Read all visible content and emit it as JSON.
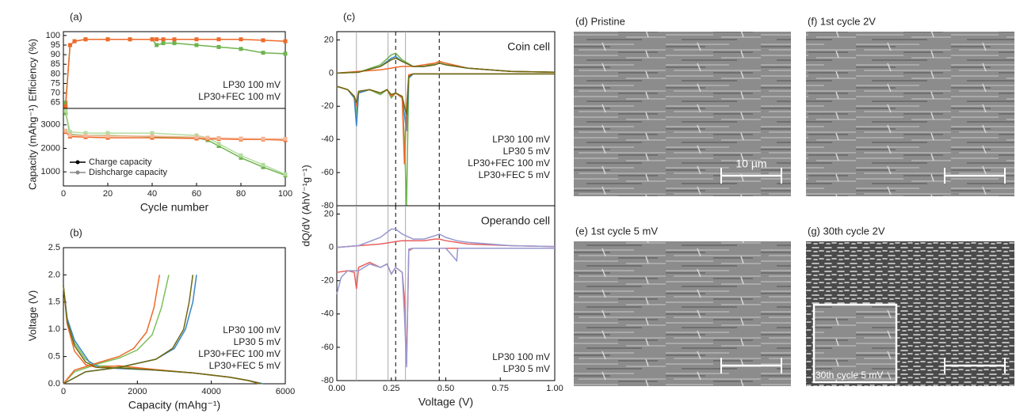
{
  "chart_data": [
    {
      "type": "line",
      "panel": "(a)",
      "ylabel": "Efficiency (%)",
      "xlim": [
        0,
        100
      ],
      "ylim": [
        62,
        102
      ],
      "yticks": [
        65,
        70,
        75,
        80,
        85,
        90,
        95,
        100
      ],
      "markers": true,
      "legend": "lower right",
      "series": [
        {
          "name": "LP30 100 mV",
          "color": "#6fb34f",
          "x": [
            1,
            3,
            5,
            10,
            20,
            30,
            40,
            42,
            45,
            50,
            60,
            70,
            80,
            90,
            100
          ],
          "values": [
            65,
            95,
            97,
            98,
            98,
            98,
            98,
            95,
            96,
            96,
            95,
            94,
            93,
            91,
            90.5
          ]
        },
        {
          "name": "LP30+FEC 100 mV",
          "color": "#ee6a2a",
          "x": [
            1,
            3,
            5,
            10,
            20,
            30,
            40,
            42,
            45,
            50,
            60,
            70,
            80,
            90,
            100
          ],
          "values": [
            63,
            95,
            97,
            98,
            98,
            98,
            98,
            98,
            98,
            98,
            98,
            98,
            98,
            97.5,
            97
          ]
        }
      ]
    },
    {
      "type": "line",
      "ylabel": "Capacity (mAhg⁻¹)",
      "xlabel": "Cycle number",
      "xlim": [
        0,
        100
      ],
      "ylim": [
        400,
        3700
      ],
      "xticks": [
        0,
        20,
        40,
        60,
        80,
        100
      ],
      "yticks": [
        1000,
        2000,
        3000
      ],
      "markers": true,
      "legend": "lower left",
      "legend_entries": [
        {
          "label": "Charge capacity",
          "color": "#000000"
        },
        {
          "label": "Dishcharge capacity",
          "color": "#888888"
        }
      ],
      "series": [
        {
          "color": "#6fb34f",
          "x": [
            1,
            3,
            10,
            20,
            40,
            60,
            65,
            70,
            80,
            90,
            100
          ],
          "values": [
            3500,
            2600,
            2550,
            2550,
            2500,
            2450,
            2350,
            2100,
            1600,
            1200,
            850
          ]
        },
        {
          "color": "#b4dca0",
          "x": [
            1,
            3,
            10,
            20,
            40,
            60,
            65,
            70,
            80,
            90,
            100
          ],
          "values": [
            3600,
            2700,
            2650,
            2650,
            2650,
            2550,
            2450,
            2200,
            1700,
            1300,
            900
          ]
        },
        {
          "color": "#ee6a2a",
          "x": [
            1,
            3,
            10,
            20,
            40,
            60,
            65,
            70,
            80,
            90,
            100
          ],
          "values": [
            2700,
            2500,
            2480,
            2450,
            2450,
            2420,
            2400,
            2400,
            2380,
            2380,
            2350
          ]
        },
        {
          "color": "#f5b89a",
          "x": [
            1,
            3,
            10,
            20,
            40,
            60,
            65,
            70,
            80,
            90,
            100
          ],
          "values": [
            2750,
            2560,
            2540,
            2520,
            2520,
            2480,
            2450,
            2440,
            2420,
            2410,
            2400
          ]
        }
      ]
    },
    {
      "type": "line",
      "panel": "(b)",
      "ylabel": "Voltage (V)",
      "xlabel": "Capacity (mAhg⁻¹)",
      "xlim": [
        0,
        6000
      ],
      "ylim": [
        0,
        2.5
      ],
      "xticks": [
        0,
        2000,
        4000,
        6000
      ],
      "yticks": [
        {
          "value": 0,
          "label": "0.0"
        },
        0.5,
        {
          "value": 1,
          "label": "1.0"
        },
        1.5,
        {
          "value": 2,
          "label": "2.0"
        },
        2.5
      ],
      "legend": "lower right",
      "series": [
        {
          "name": "LP30 100 mV",
          "color": "#7cc05a",
          "x": [
            0,
            100,
            300,
            600,
            900,
            1500,
            2500,
            3500,
            4500,
            5000,
            5300,
            null,
            0,
            300,
            1000,
            1500,
            2000,
            2400,
            2650,
            2850
          ],
          "values": [
            1.8,
            1.2,
            0.75,
            0.45,
            0.33,
            0.32,
            0.25,
            0.2,
            0.12,
            0.06,
            0,
            null,
            0,
            0.22,
            0.38,
            0.47,
            0.62,
            0.9,
            1.4,
            2.0
          ]
        },
        {
          "name": "LP30 5 mV",
          "color": "#3a86c8",
          "x": [
            0,
            100,
            300,
            700,
            1000,
            1500,
            2500,
            3500,
            4500,
            5000,
            5400,
            null,
            0,
            600,
            1500,
            2500,
            3000,
            3300,
            3500,
            3600
          ],
          "values": [
            1.8,
            1.2,
            0.8,
            0.4,
            0.3,
            0.28,
            0.25,
            0.2,
            0.12,
            0.06,
            0,
            null,
            0,
            0.22,
            0.3,
            0.45,
            0.65,
            1.0,
            1.5,
            2.0
          ]
        },
        {
          "name": "LP30+FEC 100 mV",
          "color": "#ee6a2a",
          "x": [
            0,
            100,
            300,
            600,
            900,
            1500,
            2500,
            3500,
            4500,
            5000,
            5300,
            null,
            0,
            300,
            1000,
            1500,
            1900,
            2250,
            2450,
            2600
          ],
          "values": [
            1.8,
            1.1,
            0.6,
            0.35,
            0.3,
            0.33,
            0.26,
            0.2,
            0.12,
            0.06,
            0,
            null,
            0,
            0.25,
            0.4,
            0.5,
            0.65,
            0.95,
            1.4,
            2.0
          ]
        },
        {
          "name": "LP30+FEC 5 mV",
          "color": "#6e6a12",
          "x": [
            0,
            100,
            300,
            600,
            900,
            1500,
            2500,
            3500,
            4500,
            5000,
            5350,
            null,
            0,
            600,
            1500,
            2500,
            2950,
            3250,
            3400,
            3500
          ],
          "values": [
            1.8,
            1.15,
            0.7,
            0.4,
            0.3,
            0.29,
            0.25,
            0.2,
            0.12,
            0.06,
            0,
            null,
            0,
            0.22,
            0.3,
            0.45,
            0.65,
            1.0,
            1.5,
            2.0
          ]
        }
      ]
    },
    {
      "type": "line",
      "panel": "(c)",
      "ylabel": "dQ/dV (AhV⁻¹g⁻¹)",
      "annotation": "Coin cell",
      "xlim": [
        0,
        1
      ],
      "ylim": [
        -80,
        25
      ],
      "yticks": [
        -80,
        -60,
        -40,
        -20,
        0,
        20
      ],
      "legend": "lower right",
      "vlines": [
        {
          "x": 0.09,
          "style": "solid"
        },
        {
          "x": 0.235,
          "style": "solid"
        },
        {
          "x": 0.315,
          "style": "solid"
        },
        {
          "x": 0.27,
          "style": "dashed"
        },
        {
          "x": 0.47,
          "style": "dashed"
        }
      ],
      "series": [
        {
          "name": "LP30 100 mV",
          "color": "#6fb34f",
          "x": [
            0,
            0.1,
            0.2,
            0.25,
            0.27,
            0.3,
            0.35,
            0.4,
            0.45,
            0.47,
            0.5,
            0.6,
            0.8,
            1,
            null,
            1,
            0.6,
            0.5,
            0.35,
            0.33,
            0.32,
            0.31,
            0.3,
            0.27,
            0.25,
            0.23,
            0.2,
            0.15,
            0.1,
            0.09,
            0.08,
            0.05,
            0
          ],
          "values": [
            0,
            0.5,
            5,
            11,
            12,
            8,
            4,
            4,
            6,
            7,
            6,
            3,
            1,
            0.5,
            null,
            -0.5,
            -0.5,
            -0.5,
            -0.5,
            -2,
            -80,
            -40,
            -15,
            -12,
            -15,
            -10,
            -13,
            -10,
            -12,
            -25,
            -15,
            -10,
            -8
          ]
        },
        {
          "name": "LP30 5 mV",
          "color": "#3a86c8",
          "x": [
            0,
            0.1,
            0.2,
            0.25,
            0.27,
            0.3,
            0.35,
            0.4,
            0.45,
            0.47,
            0.5,
            0.6,
            0.8,
            1,
            null,
            1,
            0.6,
            0.5,
            0.35,
            0.33,
            0.32,
            0.31,
            0.3,
            0.27,
            0.25,
            0.23,
            0.2,
            0.15,
            0.1,
            0.09,
            0.08,
            0.05,
            0
          ],
          "values": [
            0,
            0.5,
            4,
            9,
            10,
            7,
            4,
            4,
            5,
            6,
            5,
            3,
            1,
            0.5,
            null,
            -0.5,
            -0.5,
            -0.5,
            -0.5,
            -3,
            -35,
            -25,
            -15,
            -12,
            -14,
            -10,
            -12,
            -10,
            -12,
            -32,
            -15,
            -10,
            -8
          ]
        },
        {
          "name": "LP30+FEC 100 mV",
          "color": "#ee6a2a",
          "x": [
            0,
            0.1,
            0.2,
            0.25,
            0.27,
            0.3,
            0.35,
            0.4,
            0.45,
            0.47,
            0.5,
            0.6,
            0.8,
            1,
            null,
            1,
            0.6,
            0.5,
            0.35,
            0.33,
            0.32,
            0.31,
            0.3,
            0.27,
            0.25,
            0.23,
            0.2,
            0.15,
            0.1,
            0.09,
            0.08,
            0.05,
            0
          ],
          "values": [
            0,
            1,
            2,
            3,
            3.5,
            4,
            4,
            5,
            6,
            7,
            6,
            3,
            1,
            0.5,
            null,
            -0.5,
            -0.5,
            -0.5,
            -0.5,
            -1,
            -20,
            -55,
            -15,
            -12,
            -14,
            -10,
            -12,
            -10,
            -11,
            -20,
            -14,
            -10,
            -8
          ]
        },
        {
          "name": "LP30+FEC 5 mV",
          "color": "#6e6a12",
          "x": [
            0,
            0.1,
            0.2,
            0.25,
            0.27,
            0.3,
            0.35,
            0.4,
            0.45,
            0.47,
            0.5,
            0.6,
            0.8,
            1,
            null,
            1,
            0.6,
            0.5,
            0.35,
            0.33,
            0.32,
            0.31,
            0.3,
            0.27,
            0.25,
            0.23,
            0.2,
            0.15,
            0.1,
            0.09,
            0.08,
            0.05,
            0
          ],
          "values": [
            0,
            0.5,
            4,
            8,
            9,
            7,
            4,
            4,
            5,
            6,
            5,
            3,
            1,
            0.5,
            null,
            -0.5,
            -0.5,
            -0.5,
            -0.5,
            -2,
            -25,
            -20,
            -14,
            -12,
            -13,
            -10,
            -12,
            -10,
            -11,
            -18,
            -14,
            -10,
            -8
          ]
        }
      ]
    },
    {
      "type": "line",
      "annotation": "Operando cell",
      "xlabel": "Voltage (V)",
      "xlim": [
        0,
        1
      ],
      "ylim": [
        -80,
        25
      ],
      "xticks": [
        {
          "value": 0,
          "label": "0.00"
        },
        0.25,
        {
          "value": 0.5,
          "label": "0.50"
        },
        0.75,
        {
          "value": 1,
          "label": "1.00"
        }
      ],
      "yticks": [
        -80,
        -60,
        -40,
        -20,
        0,
        20
      ],
      "legend": "lower right",
      "vlines": [
        {
          "x": 0.09,
          "style": "solid"
        },
        {
          "x": 0.235,
          "style": "solid"
        },
        {
          "x": 0.315,
          "style": "solid"
        },
        {
          "x": 0.27,
          "style": "dashed"
        },
        {
          "x": 0.47,
          "style": "dashed"
        }
      ],
      "series": [
        {
          "name": "LP30 100 mV",
          "color": "#e86060",
          "x": [
            0,
            0.1,
            0.2,
            0.25,
            0.27,
            0.3,
            0.35,
            0.4,
            0.45,
            0.47,
            0.5,
            0.6,
            0.8,
            1,
            null,
            1,
            0.6,
            0.5,
            0.35,
            0.33,
            0.32,
            0.31,
            0.3,
            0.27,
            0.25,
            0.23,
            0.2,
            0.15,
            0.1,
            0.09,
            0.08,
            0.05,
            0
          ],
          "values": [
            0,
            1,
            2,
            3,
            3.5,
            4,
            4,
            4,
            5,
            5,
            4,
            2,
            1,
            0.5,
            null,
            -0.5,
            -0.5,
            -0.5,
            -0.5,
            -2,
            -70,
            -30,
            -15,
            -12,
            -16,
            -10,
            -12,
            -9,
            -12,
            -25,
            -15,
            -14,
            -15
          ]
        },
        {
          "name": "LP30 5 mV",
          "color": "#9898d0",
          "x": [
            0,
            0.1,
            0.2,
            0.25,
            0.27,
            0.3,
            0.35,
            0.4,
            0.45,
            0.47,
            0.5,
            0.55,
            0.6,
            0.8,
            1,
            null,
            1,
            0.6,
            0.555,
            0.55,
            0.5,
            0.35,
            0.33,
            0.32,
            0.31,
            0.3,
            0.27,
            0.25,
            0.23,
            0.2,
            0.15,
            0.1,
            0.05,
            0.02,
            0
          ],
          "values": [
            0,
            1,
            6,
            11,
            11,
            8,
            5,
            5,
            7,
            8,
            6,
            4,
            3,
            1,
            0.5,
            null,
            -0.5,
            -0.5,
            -0.5,
            -8,
            -0.5,
            -0.5,
            -1,
            -72,
            -40,
            -15,
            -12,
            -16,
            -10,
            -12,
            -10,
            -14,
            -14,
            -18,
            -28
          ]
        }
      ]
    }
  ],
  "images": [
    {
      "label": "(d) Pristine",
      "scale": "10 µm"
    },
    {
      "label": "(f) 1st cycle 2V"
    },
    {
      "label": "(e) 1st cycle 5 mV"
    },
    {
      "label": "(g) 30th cycle 2V",
      "inset": "30th cycle 5 mV"
    }
  ]
}
